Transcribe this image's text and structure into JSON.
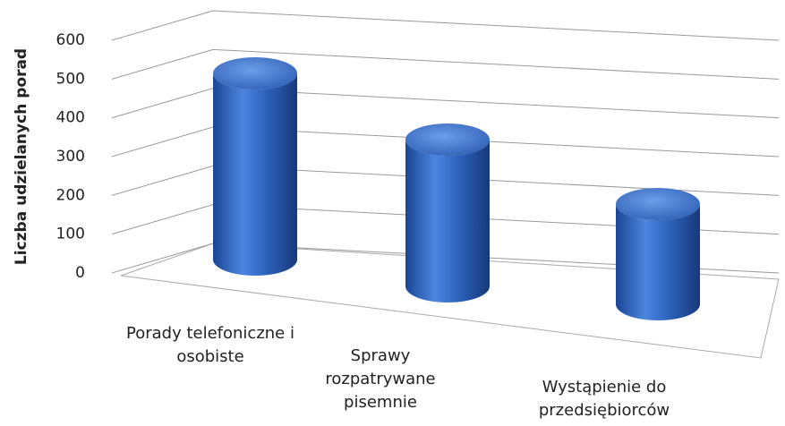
{
  "chart_data": {
    "type": "bar3d",
    "y_label": "Liczba udzielanych porad",
    "categories": [
      "Porady telefoniczne i osobiste",
      "Sprawy rozpatrywane pisemnie",
      "Wystąpienie do przedsiębiorców"
    ],
    "values": [
      520,
      410,
      280
    ],
    "color": "#2f66c0",
    "ylim": [
      0,
      600
    ],
    "yticks": [
      0,
      100,
      200,
      300,
      400,
      500,
      600
    ],
    "grid": true
  }
}
